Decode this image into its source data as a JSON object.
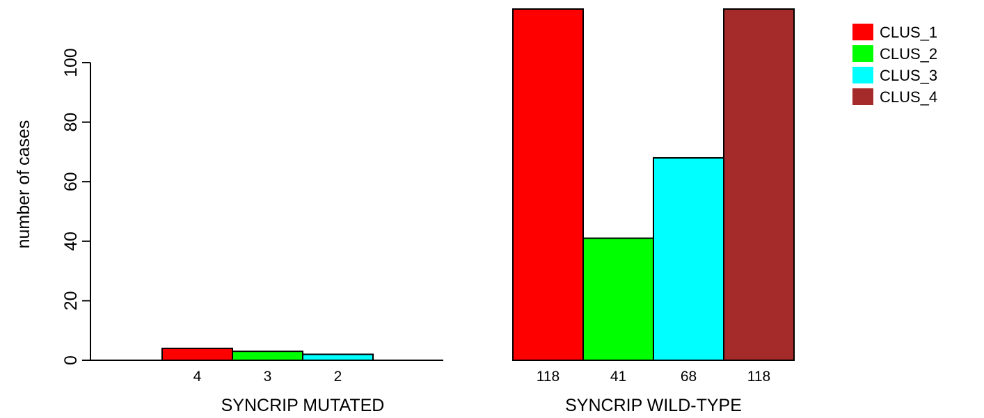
{
  "chart_data": {
    "type": "bar",
    "title": "",
    "xlabel": "",
    "ylabel": "number of cases",
    "ylim": [
      0,
      118
    ],
    "yticks": [
      0,
      20,
      40,
      60,
      80,
      100
    ],
    "grid": false,
    "legend_position": "top-right",
    "series": [
      {
        "name": "CLUS_1",
        "color": "#FF0000"
      },
      {
        "name": "CLUS_2",
        "color": "#00FF00"
      },
      {
        "name": "CLUS_3",
        "color": "#00FFFF"
      },
      {
        "name": "CLUS_4",
        "color": "#A52A2A"
      }
    ],
    "groups": [
      {
        "label": "SYNCRIP MUTATED",
        "values": [
          4,
          3,
          2,
          0
        ],
        "value_labels": [
          "4",
          "3",
          "2",
          ""
        ]
      },
      {
        "label": "SYNCRIP WILD-TYPE",
        "values": [
          118,
          41,
          68,
          118
        ],
        "value_labels": [
          "118",
          "41",
          "68",
          "118"
        ]
      }
    ]
  }
}
